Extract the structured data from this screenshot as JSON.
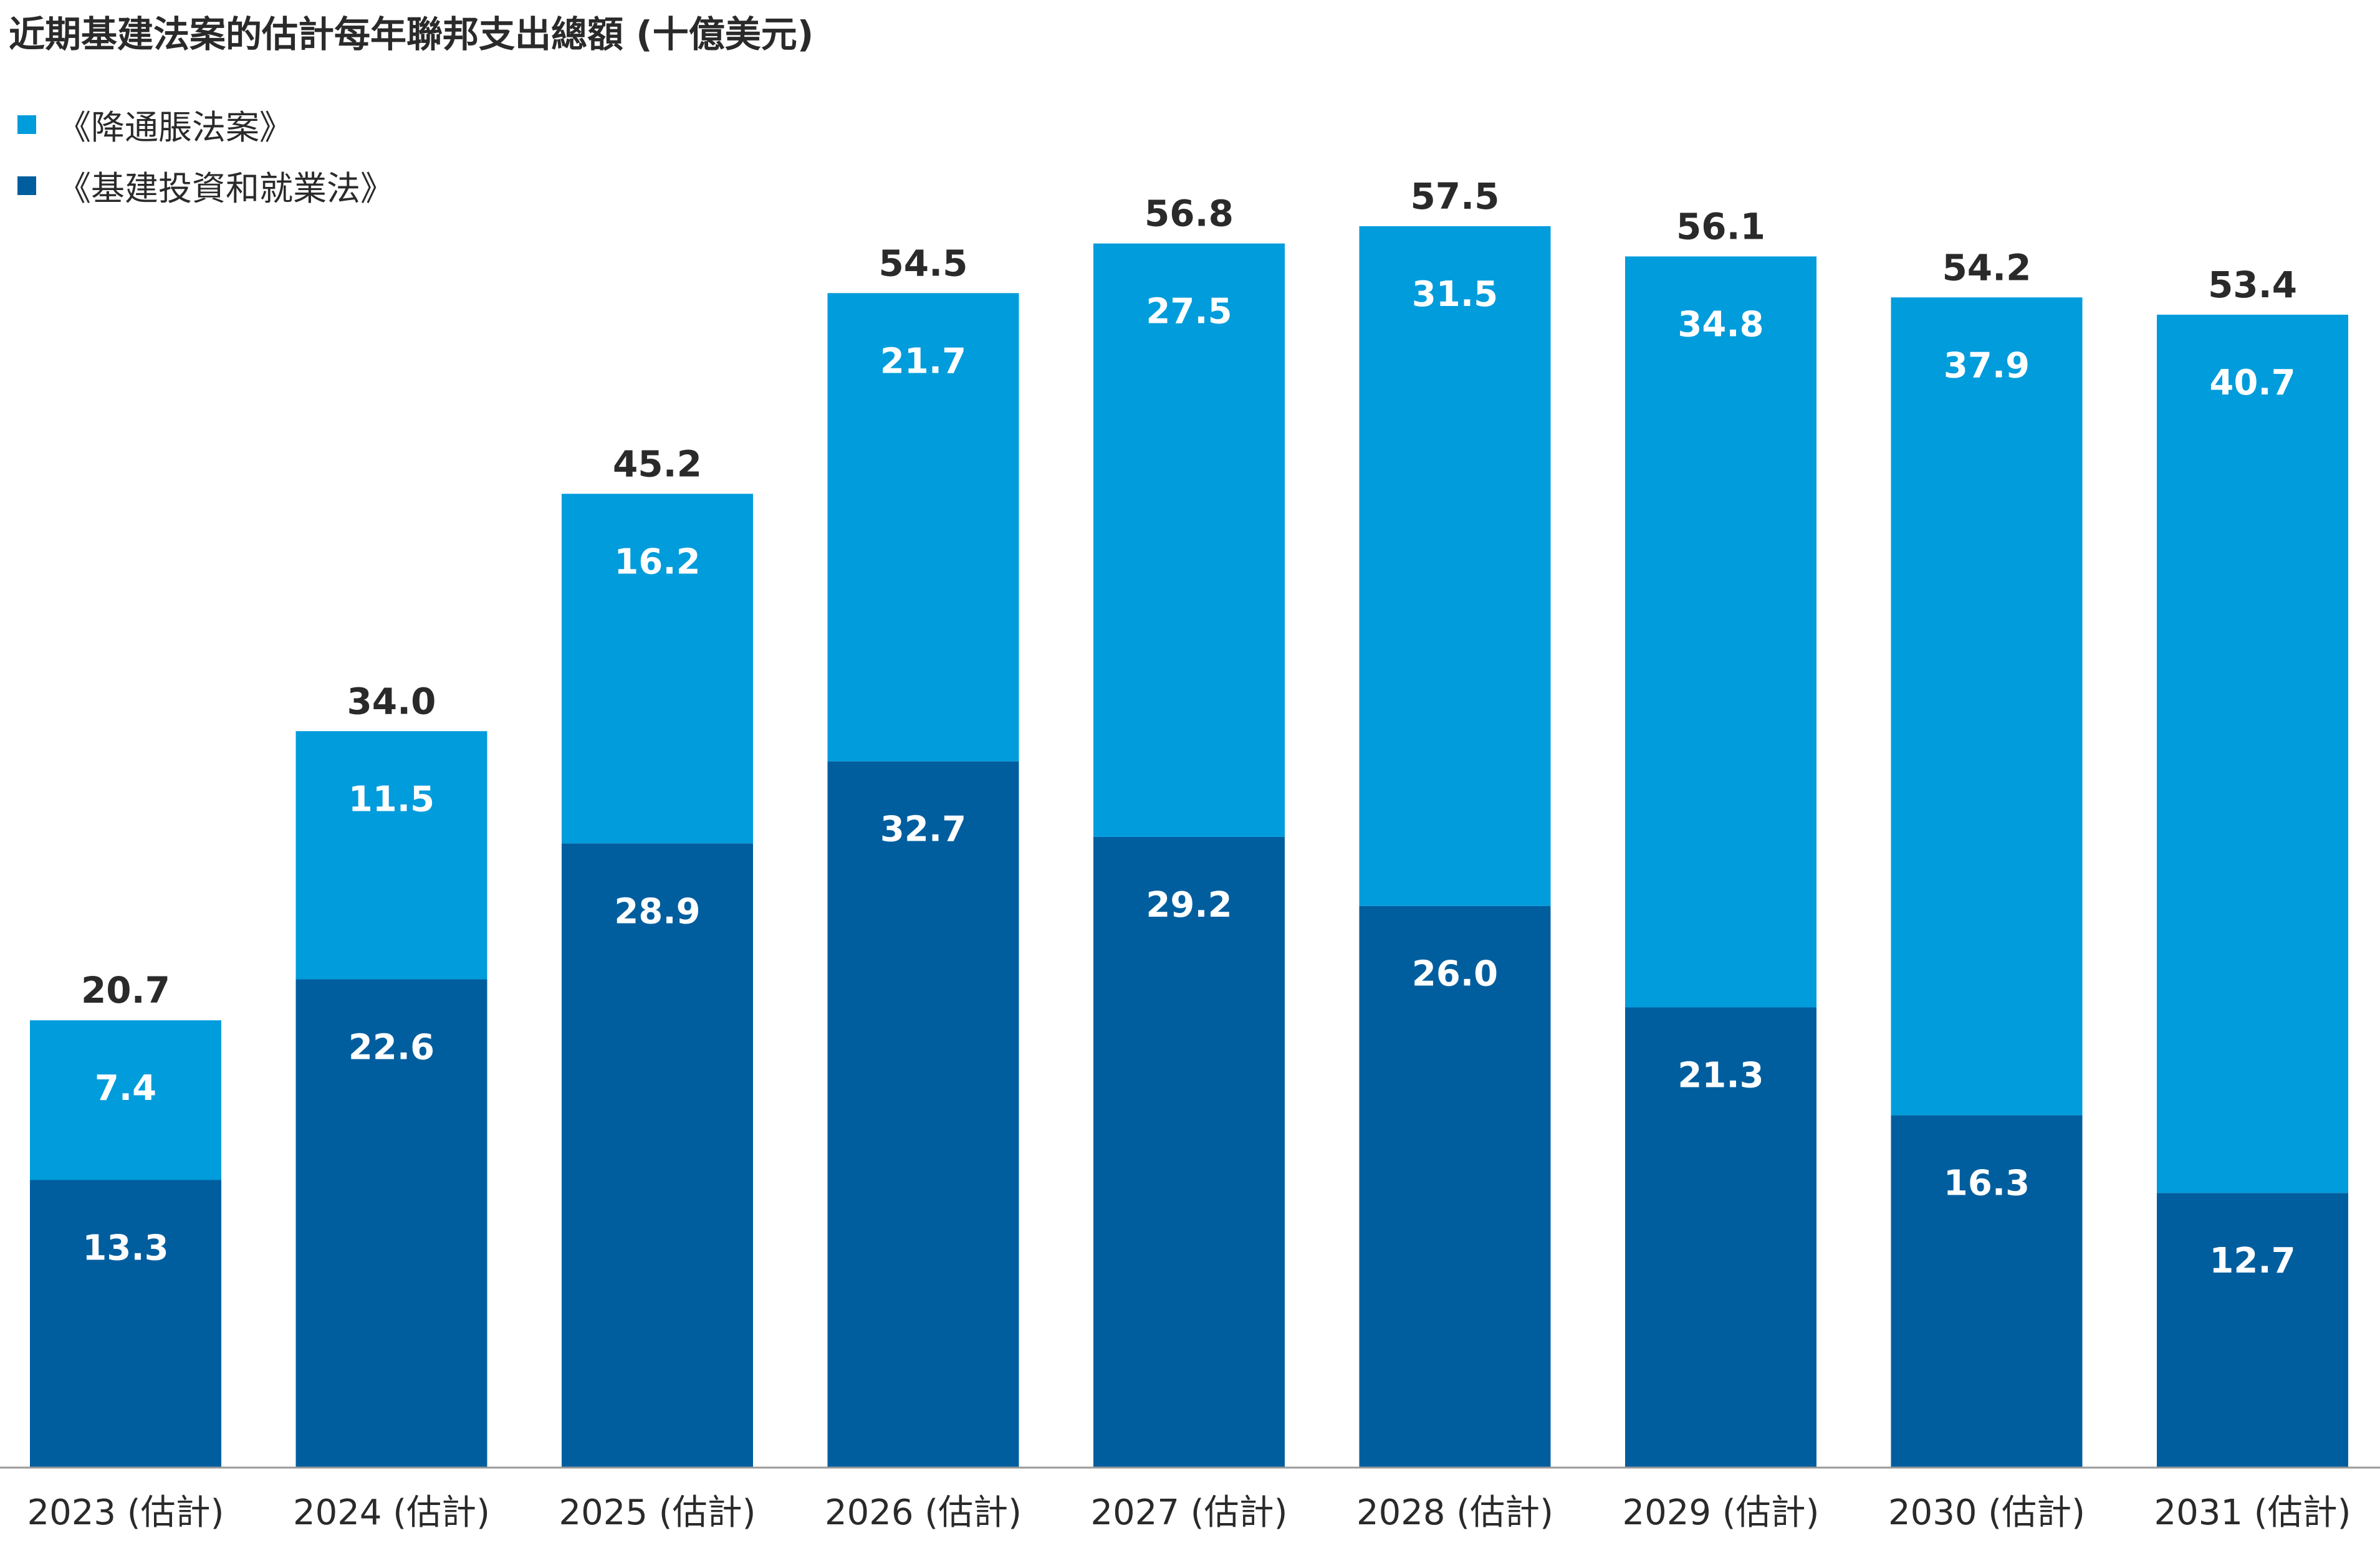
{
  "chart_data": {
    "type": "bar",
    "stacked": true,
    "title": "近期基建法案的估計每年聯邦支出總額 (十億美元)",
    "categories": [
      "2023 (估計)",
      "2024 (估計)",
      "2025 (估計)",
      "2026 (估計)",
      "2027 (估計)",
      "2028 (估計)",
      "2029 (估計)",
      "2030 (估計)",
      "2031 (估計)"
    ],
    "series": [
      {
        "name": "《基建投資和就業法》",
        "color": "#005e9e",
        "values": [
          13.3,
          22.6,
          28.9,
          32.7,
          29.2,
          26.0,
          21.3,
          16.3,
          12.7
        ]
      },
      {
        "name": "《降通脹法案》",
        "color": "#009cdc",
        "values": [
          7.4,
          11.5,
          16.2,
          21.7,
          27.5,
          31.5,
          34.8,
          37.9,
          40.7
        ]
      }
    ],
    "totals": [
      20.7,
      34.0,
      45.2,
      54.5,
      56.8,
      57.5,
      56.1,
      54.2,
      53.4
    ],
    "ylim": [
      0,
      57.5
    ],
    "grid": false,
    "legend_position": "top-left",
    "xlabel": "",
    "ylabel": ""
  }
}
